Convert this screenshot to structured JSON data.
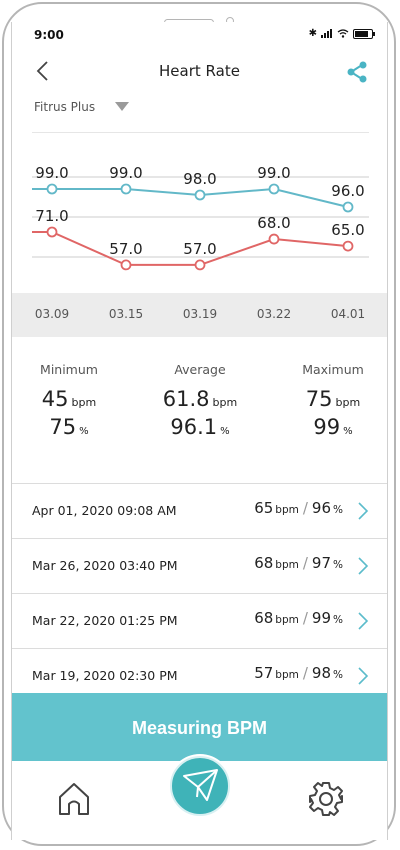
{
  "status_bar": {
    "time": "9:00"
  },
  "header": {
    "title": "Heart Rate"
  },
  "device": {
    "name": "Fitrus Plus"
  },
  "colors": {
    "spo2_line": "#62b8c8",
    "bpm_line": "#e06666",
    "accent": "#62c3cd"
  },
  "chart_data": {
    "type": "line",
    "categories": [
      "03.09",
      "03.15",
      "03.19",
      "03.22",
      "04.01"
    ],
    "series": [
      {
        "values": [
          99.0,
          99.0,
          98.0,
          99.0,
          96.0
        ]
      },
      {
        "values": [
          71.0,
          57.0,
          57.0,
          68.0,
          65.0
        ]
      }
    ],
    "labels": {
      "top": [
        "99.0",
        "99.0",
        "98.0",
        "99.0",
        "96.0"
      ],
      "bottom": [
        "71.0",
        "57.0",
        "57.0",
        "68.0",
        "65.0"
      ]
    },
    "grid": true
  },
  "stats": {
    "minimum": {
      "label": "Minimum",
      "bpm": "45",
      "spo2": "75"
    },
    "average": {
      "label": "Average",
      "bpm": "61.8",
      "spo2": "96.1"
    },
    "maximum": {
      "label": "Maximum",
      "bpm": "75",
      "spo2": "99"
    },
    "bpm_unit": "bpm",
    "spo2_unit": "%"
  },
  "records": [
    {
      "date": "Apr 01, 2020 09:08 AM",
      "bpm": "65",
      "spo2": "96"
    },
    {
      "date": "Mar 26, 2020 03:40 PM",
      "bpm": "68",
      "spo2": "97"
    },
    {
      "date": "Mar 22, 2020 01:25 PM",
      "bpm": "68",
      "spo2": "99"
    },
    {
      "date": "Mar 19, 2020 02:30 PM",
      "bpm": "57",
      "spo2": "98"
    }
  ],
  "units": {
    "bpm": "bpm",
    "percent": "%",
    "slash": "/"
  },
  "actions": {
    "measure_label": "Measuring BPM"
  },
  "icons": {
    "back": "chevron-left-icon",
    "share": "share-icon",
    "dropdown": "triangle-down-icon",
    "home": "home-icon",
    "send": "paper-plane-icon",
    "settings": "gear-icon",
    "record_chevron": "chevron-right-icon"
  }
}
